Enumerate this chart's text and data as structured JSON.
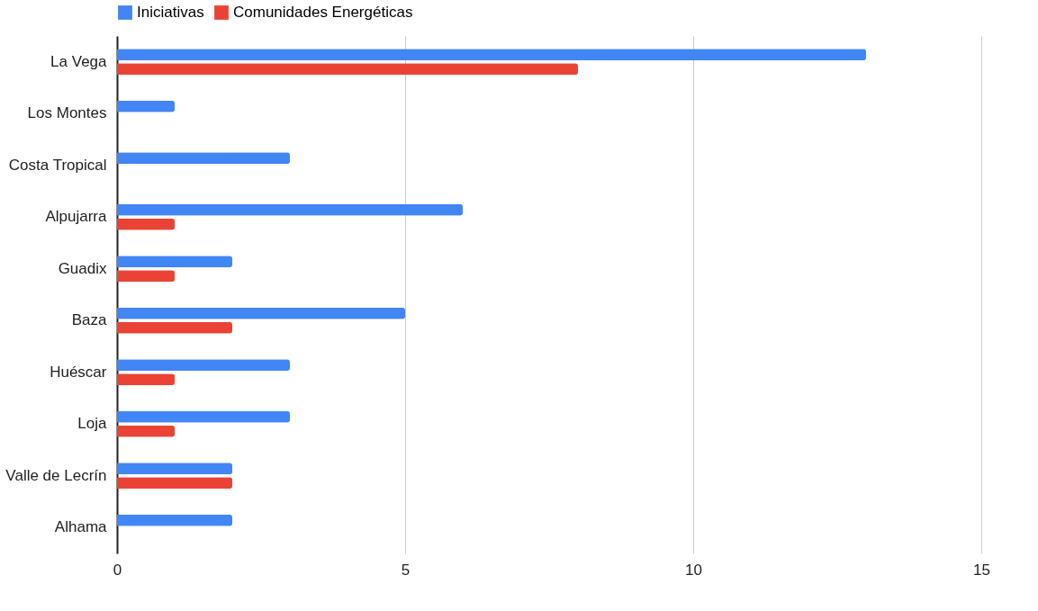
{
  "chart_data": {
    "type": "bar",
    "orientation": "horizontal",
    "categories": [
      "La Vega",
      "Los Montes",
      "Costa Tropical",
      "Alpujarra",
      "Guadix",
      "Baza",
      "Huéscar",
      "Loja",
      "Valle de Lecrín",
      "Alhama"
    ],
    "series": [
      {
        "name": "Iniciativas",
        "color": "#4285f4",
        "values": [
          13,
          1,
          3,
          6,
          2,
          5,
          3,
          3,
          2,
          2
        ]
      },
      {
        "name": "Comunidades Energéticas",
        "color": "#ea4335",
        "values": [
          8,
          null,
          null,
          1,
          1,
          2,
          1,
          1,
          2,
          null
        ]
      }
    ],
    "xlim": [
      0,
      15
    ],
    "xticks": [
      0,
      5,
      10,
      15
    ],
    "grid": "x",
    "legend": "top"
  }
}
